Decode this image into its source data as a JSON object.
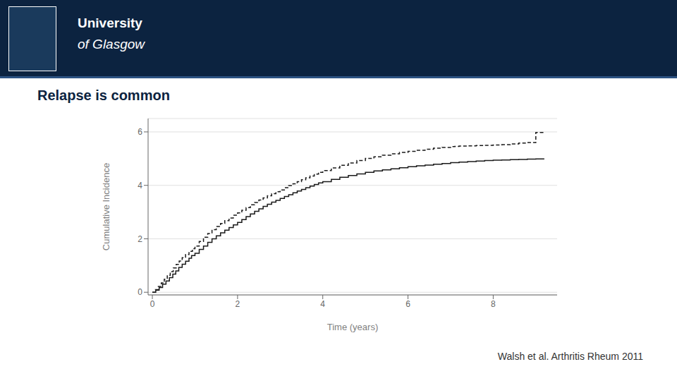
{
  "chart_data": {
    "type": "step",
    "title": "Relapse is common",
    "x_label": "Time (years)",
    "y_label": "Cumulative Incidence",
    "annotations": [
      "University",
      "of Glasgow",
      "Walsh et al. Arthritis Rheum 2011"
    ],
    "xlim": [
      -0.1,
      9.5
    ],
    "ylim": [
      -0.1,
      6.5
    ],
    "xticks": [
      0,
      2,
      4,
      6,
      8
    ],
    "yticks": [
      0,
      2,
      4,
      6
    ],
    "grid": "y",
    "series": [
      {
        "color": "#1a1a1a",
        "line_style": "solid",
        "x": [
          0,
          0.08,
          0.16,
          0.24,
          0.32,
          0.4,
          0.48,
          0.55,
          0.62,
          0.7,
          0.78,
          0.86,
          0.92,
          1.0,
          1.1,
          1.2,
          1.3,
          1.4,
          1.5,
          1.6,
          1.7,
          1.8,
          1.9,
          2.0,
          2.1,
          2.2,
          2.3,
          2.4,
          2.5,
          2.6,
          2.7,
          2.8,
          2.9,
          3.0,
          3.1,
          3.2,
          3.3,
          3.4,
          3.5,
          3.6,
          3.7,
          3.8,
          3.9,
          4.0,
          4.2,
          4.4,
          4.6,
          4.8,
          5.0,
          5.2,
          5.4,
          5.6,
          5.8,
          6.0,
          6.2,
          6.4,
          6.6,
          6.8,
          7.0,
          7.2,
          7.4,
          7.6,
          7.8,
          8.0,
          8.2,
          8.4,
          8.6,
          8.8,
          9.0,
          9.2
        ],
        "values": [
          0,
          0.08,
          0.18,
          0.3,
          0.42,
          0.55,
          0.68,
          0.8,
          0.93,
          1.05,
          1.16,
          1.27,
          1.37,
          1.46,
          1.6,
          1.73,
          1.87,
          2.0,
          2.11,
          2.22,
          2.32,
          2.42,
          2.52,
          2.61,
          2.72,
          2.83,
          2.93,
          3.03,
          3.12,
          3.21,
          3.29,
          3.37,
          3.44,
          3.51,
          3.58,
          3.65,
          3.72,
          3.79,
          3.85,
          3.91,
          3.97,
          4.03,
          4.09,
          4.14,
          4.22,
          4.3,
          4.37,
          4.43,
          4.49,
          4.54,
          4.58,
          4.62,
          4.66,
          4.7,
          4.73,
          4.76,
          4.79,
          4.82,
          4.85,
          4.87,
          4.89,
          4.91,
          4.93,
          4.94,
          4.95,
          4.96,
          4.97,
          4.98,
          4.99,
          4.99
        ]
      },
      {
        "color": "#1a1a1a",
        "line_style": "dashed",
        "x": [
          0,
          0.07,
          0.14,
          0.21,
          0.28,
          0.35,
          0.42,
          0.49,
          0.56,
          0.63,
          0.7,
          0.78,
          0.86,
          0.94,
          1.0,
          1.1,
          1.2,
          1.3,
          1.4,
          1.5,
          1.6,
          1.7,
          1.8,
          1.9,
          2.0,
          2.1,
          2.2,
          2.3,
          2.4,
          2.5,
          2.6,
          2.7,
          2.8,
          2.9,
          3.0,
          3.1,
          3.2,
          3.3,
          3.4,
          3.5,
          3.6,
          3.7,
          3.8,
          3.9,
          4.0,
          4.2,
          4.4,
          4.6,
          4.8,
          5.0,
          5.2,
          5.4,
          5.6,
          5.8,
          6.0,
          6.2,
          6.4,
          6.6,
          6.8,
          7.0,
          7.1,
          7.2,
          7.4,
          7.6,
          7.8,
          8.0,
          8.2,
          8.4,
          8.6,
          8.8,
          9.0,
          9.2
        ],
        "values": [
          0,
          0.1,
          0.22,
          0.35,
          0.49,
          0.63,
          0.77,
          0.91,
          1.04,
          1.17,
          1.29,
          1.41,
          1.53,
          1.63,
          1.73,
          1.9,
          2.06,
          2.2,
          2.34,
          2.46,
          2.57,
          2.68,
          2.78,
          2.88,
          2.97,
          3.07,
          3.17,
          3.27,
          3.36,
          3.45,
          3.53,
          3.61,
          3.69,
          3.76,
          3.83,
          3.91,
          3.99,
          4.06,
          4.14,
          4.21,
          4.28,
          4.35,
          4.42,
          4.49,
          4.55,
          4.65,
          4.75,
          4.84,
          4.93,
          5.01,
          5.07,
          5.13,
          5.18,
          5.23,
          5.27,
          5.31,
          5.35,
          5.39,
          5.42,
          5.45,
          5.46,
          5.47,
          5.48,
          5.49,
          5.5,
          5.51,
          5.52,
          5.55,
          5.58,
          5.6,
          5.98,
          5.98
        ]
      }
    ]
  }
}
